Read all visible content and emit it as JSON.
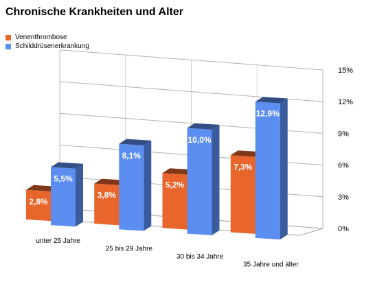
{
  "chart_data": {
    "type": "bar",
    "title": "Chronische Krankheiten und Alter",
    "categories": [
      "unter 25 Jahre",
      "25 bis 29 Jahre",
      "30 bis 34 Jahre",
      "35 Jahre und älter"
    ],
    "series": [
      {
        "name": "Venenthrombose",
        "color": "#e8652c",
        "values": [
          2.8,
          3.8,
          5.2,
          7.3
        ],
        "labels": [
          "2,8%",
          "3,8%",
          "5,2%",
          "7,3%"
        ]
      },
      {
        "name": "Schilddrüsenerkrankung",
        "color": "#5b8ef0",
        "values": [
          5.5,
          8.1,
          10.0,
          12.9
        ],
        "labels": [
          "5,5%",
          "8,1%",
          "10,0%",
          "12,9%"
        ]
      }
    ],
    "ylim": [
      0,
      15
    ],
    "yticks": [
      "0%",
      "3%",
      "6%",
      "9%",
      "12%",
      "15%"
    ],
    "grid": true,
    "legend_position": "top-left",
    "xlabel": "",
    "ylabel": ""
  }
}
